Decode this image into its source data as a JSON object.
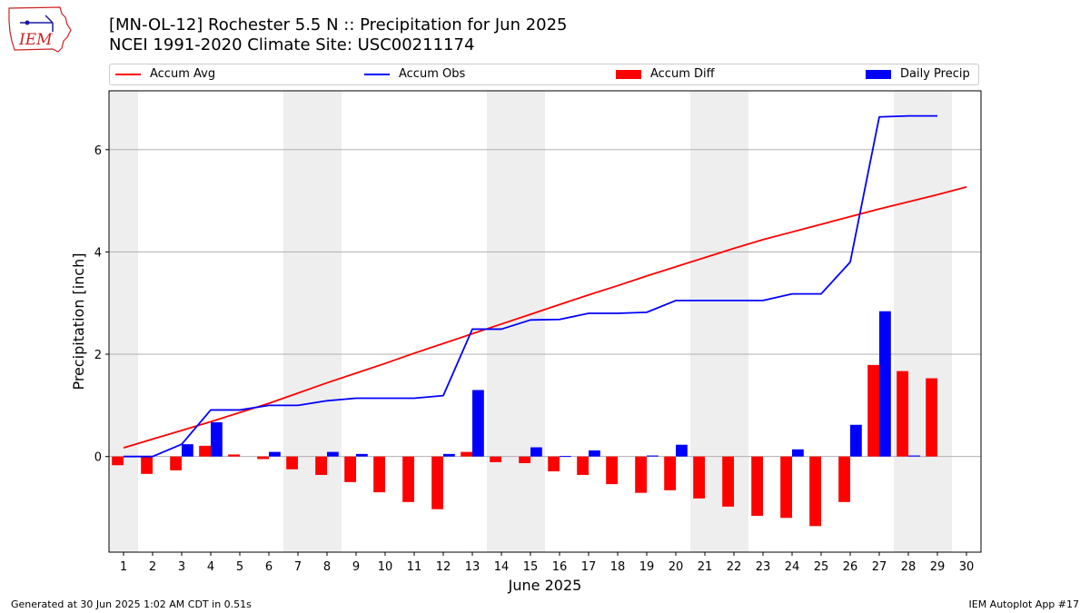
{
  "header": {
    "title_line1": "[MN-OL-12] Rochester 5.5 N :: Precipitation for Jun 2025",
    "title_line2": "NCEI 1991-2020 Climate Site: USC00211174"
  },
  "logo": {
    "text": "IEM"
  },
  "legend": [
    {
      "label": "Accum Avg",
      "color": "#ff0000",
      "kind": "line"
    },
    {
      "label": "Accum Obs",
      "color": "#0000ff",
      "kind": "line"
    },
    {
      "label": "Accum Diff",
      "color": "#ff0000",
      "kind": "box"
    },
    {
      "label": "Daily Precip",
      "color": "#0000ff",
      "kind": "box"
    }
  ],
  "footer": {
    "left": "Generated at 30 Jun 2025 1:02 AM CDT in 0.51s",
    "right": "IEM Autoplot App #17"
  },
  "chart_data": {
    "type": "bar",
    "xlabel": "June 2025",
    "ylabel": "Precipitation [inch]",
    "xlim": [
      0.5,
      30.5
    ],
    "ylim": [
      -1.87,
      7.15
    ],
    "yticks": [
      0,
      2,
      4,
      6
    ],
    "xticks": [
      1,
      2,
      3,
      4,
      5,
      6,
      7,
      8,
      9,
      10,
      11,
      12,
      13,
      14,
      15,
      16,
      17,
      18,
      19,
      20,
      21,
      22,
      23,
      24,
      25,
      26,
      27,
      28,
      29,
      30
    ],
    "grid": "horizontal",
    "legend_position": "top",
    "weekend_shading": [
      [
        0.5,
        1.5
      ],
      [
        6.5,
        8.5
      ],
      [
        13.5,
        15.5
      ],
      [
        20.5,
        22.5
      ],
      [
        27.5,
        29.5
      ]
    ],
    "series": [
      {
        "name": "Accum Avg",
        "kind": "line",
        "color": "#ff0000",
        "x": [
          1,
          2,
          3,
          4,
          5,
          6,
          7,
          8,
          9,
          10,
          11,
          12,
          13,
          14,
          15,
          16,
          17,
          18,
          19,
          20,
          21,
          22,
          23,
          24,
          25,
          26,
          27,
          28,
          29,
          30
        ],
        "values": [
          0.17,
          0.34,
          0.51,
          0.68,
          0.86,
          1.04,
          1.24,
          1.44,
          1.63,
          1.82,
          2.02,
          2.21,
          2.4,
          2.59,
          2.78,
          2.97,
          3.16,
          3.34,
          3.53,
          3.71,
          3.89,
          4.07,
          4.24,
          4.39,
          4.54,
          4.69,
          4.84,
          4.98,
          5.12,
          5.27
        ]
      },
      {
        "name": "Accum Obs",
        "kind": "line",
        "color": "#0000ff",
        "x": [
          1,
          2,
          3,
          4,
          5,
          6,
          7,
          8,
          9,
          10,
          11,
          12,
          13,
          14,
          15,
          16,
          17,
          18,
          19,
          20,
          21,
          22,
          23,
          24,
          25,
          26,
          27,
          28,
          29
        ],
        "values": [
          0.0,
          0.0,
          0.24,
          0.91,
          0.91,
          1.0,
          1.0,
          1.09,
          1.14,
          1.14,
          1.14,
          1.19,
          2.49,
          2.49,
          2.67,
          2.68,
          2.8,
          2.8,
          2.82,
          3.05,
          3.05,
          3.05,
          3.05,
          3.18,
          3.18,
          3.8,
          6.64,
          6.66,
          6.66
        ]
      },
      {
        "name": "Accum Diff",
        "kind": "bar",
        "color": "#ff0000",
        "x": [
          1,
          2,
          3,
          4,
          5,
          6,
          7,
          8,
          9,
          10,
          11,
          12,
          13,
          14,
          15,
          16,
          17,
          18,
          19,
          20,
          21,
          22,
          23,
          24,
          25,
          26,
          27,
          28,
          29
        ],
        "values": [
          -0.17,
          -0.34,
          -0.27,
          0.21,
          0.04,
          -0.05,
          -0.25,
          -0.36,
          -0.5,
          -0.7,
          -0.89,
          -1.03,
          0.09,
          -0.11,
          -0.13,
          -0.29,
          -0.36,
          -0.54,
          -0.71,
          -0.66,
          -0.82,
          -0.98,
          -1.16,
          -1.2,
          -1.36,
          -0.89,
          1.79,
          1.67,
          1.53
        ]
      },
      {
        "name": "Daily Precip",
        "kind": "bar",
        "color": "#0000ff",
        "x": [
          1,
          2,
          3,
          4,
          5,
          6,
          7,
          8,
          9,
          10,
          11,
          12,
          13,
          14,
          15,
          16,
          17,
          18,
          19,
          20,
          21,
          22,
          23,
          24,
          25,
          26,
          27,
          28,
          29
        ],
        "values": [
          0,
          0,
          0.24,
          0.67,
          0,
          0.09,
          0,
          0.09,
          0.05,
          0,
          0,
          0.05,
          1.3,
          0,
          0.18,
          0.01,
          0.12,
          0,
          0.02,
          0.23,
          0,
          0,
          0,
          0.14,
          0,
          0.62,
          2.84,
          0.02,
          0
        ]
      }
    ]
  }
}
